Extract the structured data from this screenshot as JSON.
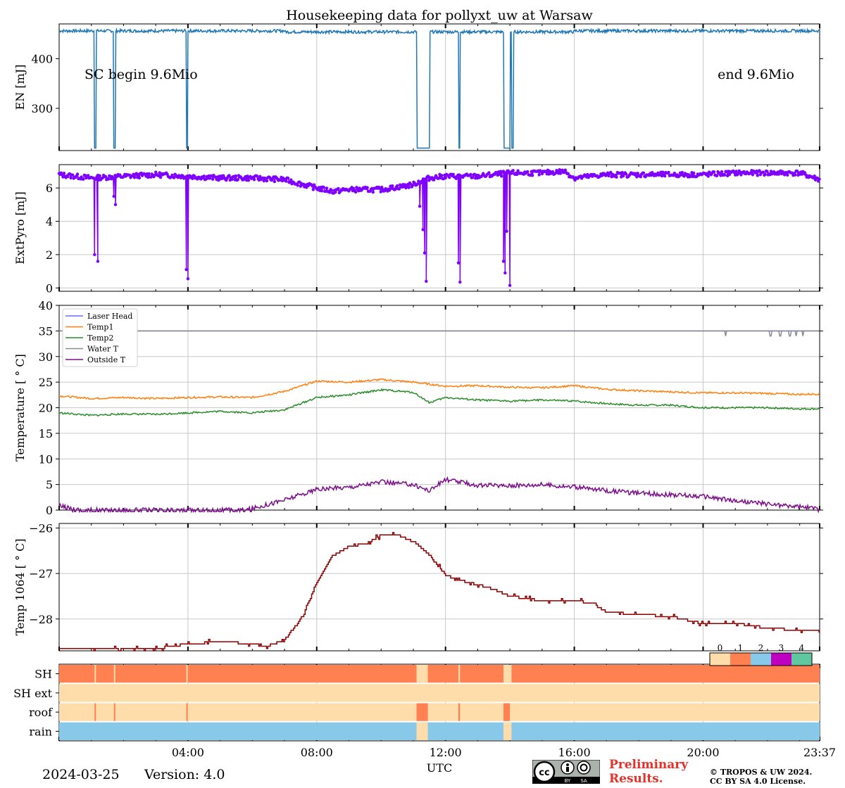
{
  "chart_data": {
    "type": "line",
    "title": "Housekeeping data for pollyxt_uw at Warsaw",
    "xlabel": "UTC",
    "x_ticks": [
      "04:00",
      "08:00",
      "12:00",
      "16:00",
      "20:00",
      "23:37"
    ],
    "x_tick_hours": [
      4,
      8,
      12,
      16,
      20,
      23.62
    ],
    "xlim_hours": [
      0,
      23.62
    ],
    "panels": [
      {
        "name": "EN",
        "ylabel": "EN [mJ]",
        "ylim": [
          215,
          470
        ],
        "yticks": [
          300,
          400
        ],
        "color": "#1f77b4",
        "annotations": [
          "SC begin 9.6Mio",
          "end 9.6Mio"
        ],
        "baseline": 456,
        "drops_hours": [
          [
            1.1,
            1.15
          ],
          [
            1.7,
            1.75
          ],
          [
            3.95,
            4.0
          ],
          [
            11.1,
            11.5
          ],
          [
            12.4,
            12.45
          ],
          [
            13.8,
            14.0
          ],
          [
            14.05,
            14.1
          ]
        ],
        "drop_value": 220
      },
      {
        "name": "ExtPyro",
        "ylabel": "ExtPyro [mJ]",
        "ylim": [
          -0.2,
          7.4
        ],
        "yticks": [
          0,
          2,
          4,
          6
        ],
        "color": "#7f00ff",
        "x": [
          0,
          1,
          2,
          3,
          4,
          5,
          6,
          7,
          8,
          8.5,
          9,
          10,
          11,
          11.2,
          11.5,
          12,
          13,
          14,
          15,
          15.7,
          16,
          17,
          18,
          19,
          20,
          21,
          22,
          23,
          23.62
        ],
        "values": [
          6.8,
          6.6,
          6.7,
          6.8,
          6.7,
          6.6,
          6.6,
          6.5,
          6.0,
          5.8,
          5.9,
          5.9,
          6.2,
          6.4,
          6.6,
          6.7,
          6.7,
          6.9,
          6.9,
          7.0,
          6.6,
          6.8,
          6.8,
          6.8,
          6.8,
          6.9,
          6.9,
          6.9,
          6.5
        ],
        "dips": [
          [
            1.1,
            2.0
          ],
          [
            1.2,
            1.6
          ],
          [
            1.7,
            5.5
          ],
          [
            1.75,
            5.0
          ],
          [
            3.95,
            1.1
          ],
          [
            4.0,
            0.55
          ],
          [
            11.2,
            4.9
          ],
          [
            11.3,
            3.5
          ],
          [
            11.35,
            2.1
          ],
          [
            11.4,
            0.4
          ],
          [
            12.4,
            1.5
          ],
          [
            12.45,
            0.35
          ],
          [
            13.8,
            1.6
          ],
          [
            13.85,
            0.9
          ],
          [
            13.9,
            3.4
          ],
          [
            14.0,
            0.15
          ]
        ]
      },
      {
        "name": "Temperature",
        "ylabel": "Temperature [$^\\circ C$]",
        "ylim": [
          0,
          40
        ],
        "yticks": [
          0,
          5,
          10,
          15,
          20,
          25,
          30,
          35,
          40
        ],
        "legend_position": "upper-left",
        "series": [
          {
            "name": "Laser Head",
            "color": "#6b6bff",
            "x": [
              0,
              23.62
            ],
            "values": [
              35,
              35
            ]
          },
          {
            "name": "Temp1",
            "color": "#ff7f0e",
            "x": [
              0,
              1,
              2,
              3,
              4,
              5,
              6,
              7,
              8,
              9,
              10,
              11,
              12,
              13,
              14,
              15,
              16,
              17,
              18,
              19,
              20,
              21,
              22,
              23,
              23.62
            ],
            "values": [
              22.3,
              21.8,
              22.0,
              21.8,
              22.0,
              22.1,
              22.0,
              23.2,
              25.2,
              25.0,
              25.5,
              25.0,
              24.2,
              24.3,
              24.0,
              23.9,
              24.3,
              23.6,
              23.3,
              23.1,
              22.9,
              22.9,
              22.8,
              22.6,
              22.7
            ]
          },
          {
            "name": "Temp2",
            "color": "#2a8c2a",
            "x": [
              0,
              1,
              2,
              3,
              4,
              5,
              6,
              7,
              8,
              9,
              10,
              11,
              11.5,
              12,
              13,
              14,
              15,
              16,
              17,
              18,
              19,
              20,
              21,
              22,
              23,
              23.62
            ],
            "values": [
              19.0,
              18.5,
              18.8,
              18.7,
              19.0,
              19.3,
              19.0,
              19.6,
              22.0,
              22.5,
              23.5,
              23.0,
              21.0,
              22.0,
              21.5,
              21.3,
              21.5,
              21.3,
              20.8,
              20.5,
              20.5,
              20.0,
              20.0,
              20.0,
              19.8,
              19.8
            ]
          },
          {
            "name": "Water T",
            "color": "#8a8a8a",
            "x": [
              0,
              23.62
            ],
            "values": [
              35,
              35
            ],
            "dips_hours": [
              20.7,
              22.1,
              22.4,
              22.7,
              22.9,
              23.1
            ]
          },
          {
            "name": "Outside T",
            "color": "#7b0d8a",
            "x": [
              0,
              0.7,
              5.8,
              7,
              8,
              9,
              10,
              11,
              11.5,
              12,
              13,
              14,
              15,
              16,
              17,
              18,
              19,
              20,
              21,
              22,
              23,
              23.62
            ],
            "values": [
              0.8,
              0,
              0,
              2.0,
              4.0,
              4.5,
              5.5,
              5.0,
              3.8,
              6.0,
              4.8,
              4.8,
              5.0,
              4.5,
              3.8,
              3.3,
              3.0,
              2.7,
              1.8,
              1.2,
              0.6,
              0.3
            ]
          }
        ]
      },
      {
        "name": "Temp 1064",
        "ylabel": "Temp 1064 [$^\\circ C$]",
        "ylim": [
          -28.7,
          -25.9
        ],
        "yticks": [
          -28,
          -27,
          -26
        ],
        "color": "#8b0000",
        "x": [
          0,
          1,
          2,
          3,
          3.5,
          4,
          5,
          6,
          6.5,
          7,
          7.5,
          8,
          8.5,
          9,
          9.5,
          10,
          10.5,
          11,
          11.5,
          12,
          12.5,
          13,
          13.5,
          14,
          15,
          16,
          16.5,
          17,
          18,
          19,
          20,
          21,
          22,
          23,
          23.62
        ],
        "values": [
          -28.65,
          -28.65,
          -28.65,
          -28.65,
          -28.6,
          -28.55,
          -28.5,
          -28.55,
          -28.6,
          -28.45,
          -28.0,
          -27.2,
          -26.6,
          -26.4,
          -26.35,
          -26.15,
          -26.15,
          -26.3,
          -26.6,
          -27.05,
          -27.15,
          -27.25,
          -27.35,
          -27.5,
          -27.6,
          -27.6,
          -27.65,
          -27.85,
          -27.9,
          -27.95,
          -28.1,
          -28.1,
          -28.2,
          -28.25,
          -28.25
        ]
      },
      {
        "name": "Status",
        "type": "heatmap",
        "rows": [
          "SH",
          "SH ext",
          "roof",
          "rain"
        ],
        "colorbar_ticks": [
          "0",
          "1",
          "2",
          "3",
          "4"
        ],
        "colorbar_colors": [
          "#ffddaa",
          "#ff8050",
          "#88c8e8",
          "#c000c0",
          "#60c8a0"
        ],
        "segments": [
          {
            "row": "SH",
            "default": 1,
            "changes": [
              [
                1.1,
                1.12,
                0
              ],
              [
                1.7,
                1.72,
                0
              ],
              [
                3.95,
                3.98,
                0
              ],
              [
                11.1,
                11.45,
                0
              ],
              [
                12.4,
                12.45,
                0
              ],
              [
                13.8,
                14.05,
                0
              ]
            ]
          },
          {
            "row": "SH ext",
            "default": 0,
            "changes": []
          },
          {
            "row": "roof",
            "default": 0,
            "changes": [
              [
                1.1,
                1.12,
                1
              ],
              [
                1.7,
                1.72,
                1
              ],
              [
                3.95,
                3.98,
                1
              ],
              [
                11.1,
                11.45,
                1
              ],
              [
                12.4,
                12.45,
                1
              ],
              [
                13.8,
                14.0,
                1
              ]
            ]
          },
          {
            "row": "rain",
            "default": 2,
            "changes": [
              [
                11.1,
                11.45,
                0
              ],
              [
                13.8,
                14.05,
                0
              ]
            ]
          }
        ]
      }
    ]
  },
  "footer": {
    "date": "2024-03-25",
    "version": "Version: 4.0",
    "preliminary_line1": "Preliminary",
    "preliminary_line2": "Results.",
    "copyright_line1": "© TROPOS & UW 2024.",
    "copyright_line2": "CC BY SA 4.0 License.",
    "license_badge": [
      "cc",
      "BY",
      "SA"
    ]
  }
}
